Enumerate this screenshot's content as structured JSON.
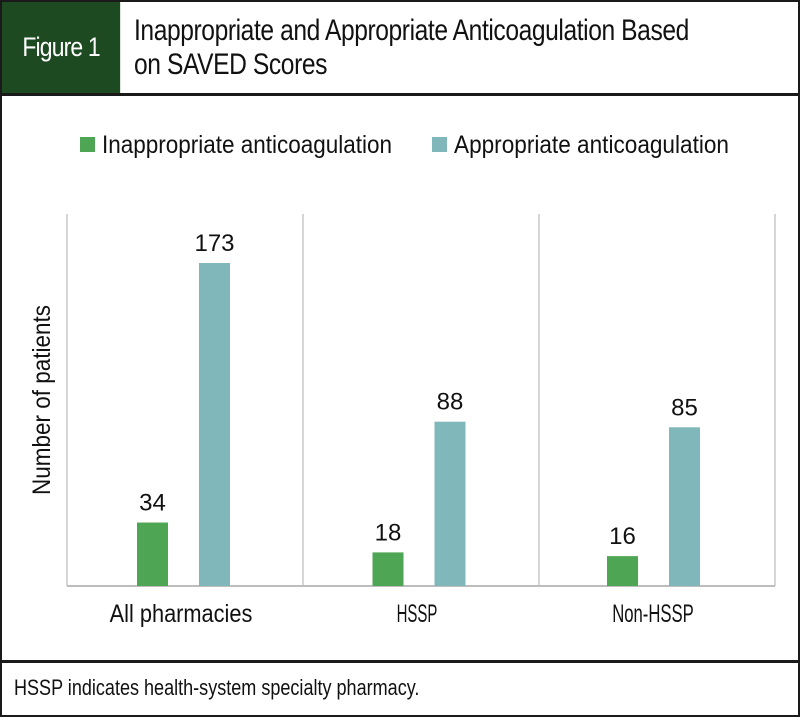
{
  "figure": {
    "label": "Figure 1",
    "title_line1": "Inappropriate and Appropriate Anticoagulation Based",
    "title_line2": "on SAVED Scores",
    "footnote": "HSSP indicates health-system specialty pharmacy.",
    "colors": {
      "header_bg": "#1e4a22",
      "inappropriate": "#4ea553",
      "appropriate": "#7fb7ba"
    }
  },
  "chart_data": {
    "type": "bar",
    "title": "Inappropriate and Appropriate Anticoagulation Based on SAVED Scores",
    "xlabel": "",
    "ylabel": "Number of patients",
    "categories": [
      "All pharmacies",
      "HSSP",
      "Non-HSSP"
    ],
    "series": [
      {
        "name": "Inappropriate anticoagulation",
        "color": "#4ea553",
        "values": [
          34,
          18,
          16
        ]
      },
      {
        "name": "Appropriate anticoagulation",
        "color": "#7fb7ba",
        "values": [
          173,
          88,
          85
        ]
      }
    ],
    "ylim": [
      0,
      200
    ],
    "grid": false,
    "legend": "top-center",
    "data_labels": true
  }
}
